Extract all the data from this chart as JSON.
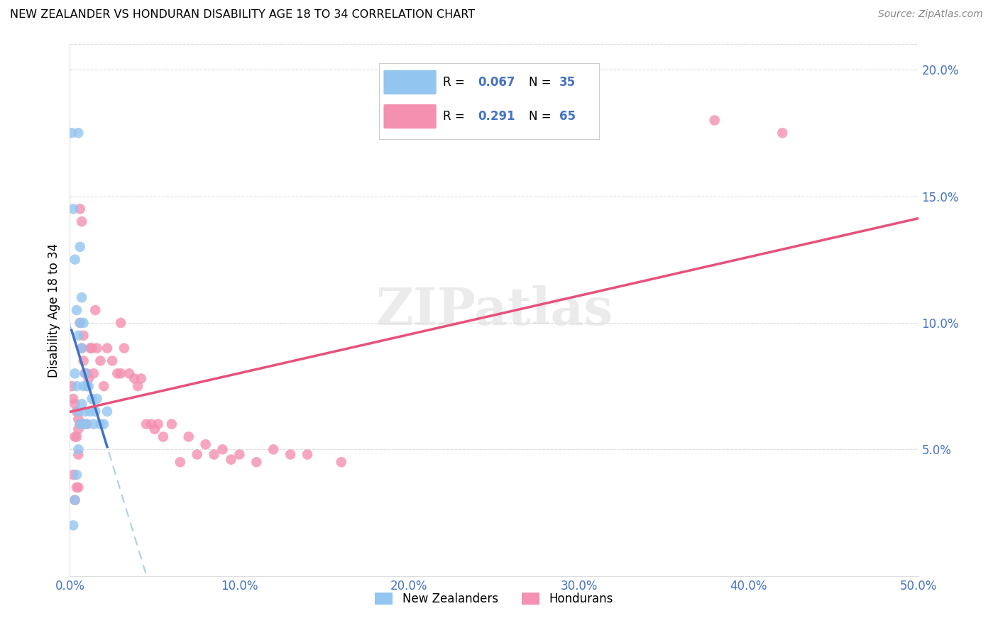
{
  "title": "NEW ZEALANDER VS HONDURAN DISABILITY AGE 18 TO 34 CORRELATION CHART",
  "source": "Source: ZipAtlas.com",
  "ylabel": "Disability Age 18 to 34",
  "ylabel_right_ticks": [
    "20.0%",
    "15.0%",
    "10.0%",
    "5.0%"
  ],
  "ylabel_right_vals": [
    0.2,
    0.15,
    0.1,
    0.05
  ],
  "xlim": [
    0.0,
    0.5
  ],
  "ylim": [
    0.0,
    0.21
  ],
  "nz_color": "#92C5F0",
  "hon_color": "#F490B0",
  "nz_line_color": "#4472C4",
  "hon_line_color": "#E8507A",
  "nz_dash_color": "#A8D0E8",
  "background_color": "#FFFFFF",
  "grid_color": "#DDDDDD",
  "tick_color": "#4472C4",
  "nz_R": "0.067",
  "nz_N": "35",
  "hon_R": "0.291",
  "hon_N": "65",
  "nz_x": [
    0.001,
    0.002,
    0.002,
    0.003,
    0.003,
    0.003,
    0.004,
    0.004,
    0.004,
    0.005,
    0.005,
    0.005,
    0.005,
    0.006,
    0.006,
    0.006,
    0.007,
    0.007,
    0.007,
    0.008,
    0.008,
    0.008,
    0.009,
    0.009,
    0.01,
    0.01,
    0.011,
    0.012,
    0.013,
    0.014,
    0.015,
    0.016,
    0.018,
    0.02,
    0.022
  ],
  "nz_y": [
    0.175,
    0.145,
    0.02,
    0.125,
    0.08,
    0.03,
    0.105,
    0.075,
    0.04,
    0.175,
    0.095,
    0.065,
    0.05,
    0.13,
    0.1,
    0.06,
    0.11,
    0.09,
    0.068,
    0.1,
    0.075,
    0.06,
    0.08,
    0.065,
    0.075,
    0.06,
    0.075,
    0.065,
    0.07,
    0.06,
    0.065,
    0.07,
    0.06,
    0.06,
    0.065
  ],
  "hon_x": [
    0.001,
    0.002,
    0.002,
    0.003,
    0.003,
    0.003,
    0.004,
    0.004,
    0.004,
    0.005,
    0.005,
    0.005,
    0.005,
    0.006,
    0.006,
    0.006,
    0.007,
    0.007,
    0.007,
    0.008,
    0.008,
    0.008,
    0.009,
    0.009,
    0.01,
    0.01,
    0.011,
    0.012,
    0.013,
    0.014,
    0.015,
    0.016,
    0.018,
    0.02,
    0.022,
    0.025,
    0.028,
    0.03,
    0.03,
    0.032,
    0.035,
    0.038,
    0.04,
    0.042,
    0.045,
    0.048,
    0.05,
    0.052,
    0.055,
    0.06,
    0.065,
    0.07,
    0.075,
    0.08,
    0.085,
    0.09,
    0.095,
    0.1,
    0.11,
    0.12,
    0.13,
    0.14,
    0.16,
    0.38,
    0.42
  ],
  "hon_y": [
    0.075,
    0.07,
    0.04,
    0.068,
    0.055,
    0.03,
    0.065,
    0.055,
    0.035,
    0.062,
    0.058,
    0.048,
    0.035,
    0.145,
    0.1,
    0.06,
    0.14,
    0.09,
    0.06,
    0.095,
    0.085,
    0.06,
    0.08,
    0.06,
    0.08,
    0.06,
    0.078,
    0.09,
    0.09,
    0.08,
    0.105,
    0.09,
    0.085,
    0.075,
    0.09,
    0.085,
    0.08,
    0.1,
    0.08,
    0.09,
    0.08,
    0.078,
    0.075,
    0.078,
    0.06,
    0.06,
    0.058,
    0.06,
    0.055,
    0.06,
    0.045,
    0.055,
    0.048,
    0.052,
    0.048,
    0.05,
    0.046,
    0.048,
    0.045,
    0.05,
    0.048,
    0.048,
    0.045,
    0.18,
    0.175
  ]
}
